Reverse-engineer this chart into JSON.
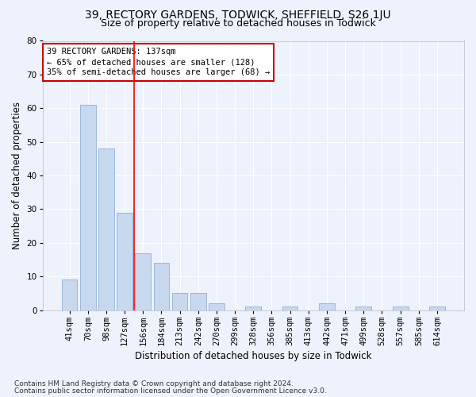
{
  "title1": "39, RECTORY GARDENS, TODWICK, SHEFFIELD, S26 1JU",
  "title2": "Size of property relative to detached houses in Todwick",
  "xlabel": "Distribution of detached houses by size in Todwick",
  "ylabel": "Number of detached properties",
  "categories": [
    "41sqm",
    "70sqm",
    "98sqm",
    "127sqm",
    "156sqm",
    "184sqm",
    "213sqm",
    "242sqm",
    "270sqm",
    "299sqm",
    "328sqm",
    "356sqm",
    "385sqm",
    "413sqm",
    "442sqm",
    "471sqm",
    "499sqm",
    "528sqm",
    "557sqm",
    "585sqm",
    "614sqm"
  ],
  "values": [
    9,
    61,
    48,
    29,
    17,
    14,
    5,
    5,
    2,
    0,
    1,
    0,
    1,
    0,
    2,
    0,
    1,
    0,
    1,
    0,
    1
  ],
  "bar_color": "#c8d8ee",
  "bar_edge_color": "#9ab8d8",
  "ylim": [
    0,
    80
  ],
  "yticks": [
    0,
    10,
    20,
    30,
    40,
    50,
    60,
    70,
    80
  ],
  "red_line_x": 3.5,
  "annotation_text1": "39 RECTORY GARDENS: 137sqm",
  "annotation_text2": "← 65% of detached houses are smaller (128)",
  "annotation_text3": "35% of semi-detached houses are larger (68) →",
  "annotation_box_color": "#ffffff",
  "annotation_box_edge": "#cc0000",
  "footer1": "Contains HM Land Registry data © Crown copyright and database right 2024.",
  "footer2": "Contains public sector information licensed under the Open Government Licence v3.0.",
  "background_color": "#eef2fc",
  "plot_background": "#eef2fc",
  "grid_color": "#ffffff",
  "title_fontsize": 10,
  "subtitle_fontsize": 9,
  "tick_fontsize": 7.5,
  "ylabel_fontsize": 8.5,
  "xlabel_fontsize": 8.5,
  "footer_fontsize": 6.5,
  "ann_fontsize": 7.5
}
